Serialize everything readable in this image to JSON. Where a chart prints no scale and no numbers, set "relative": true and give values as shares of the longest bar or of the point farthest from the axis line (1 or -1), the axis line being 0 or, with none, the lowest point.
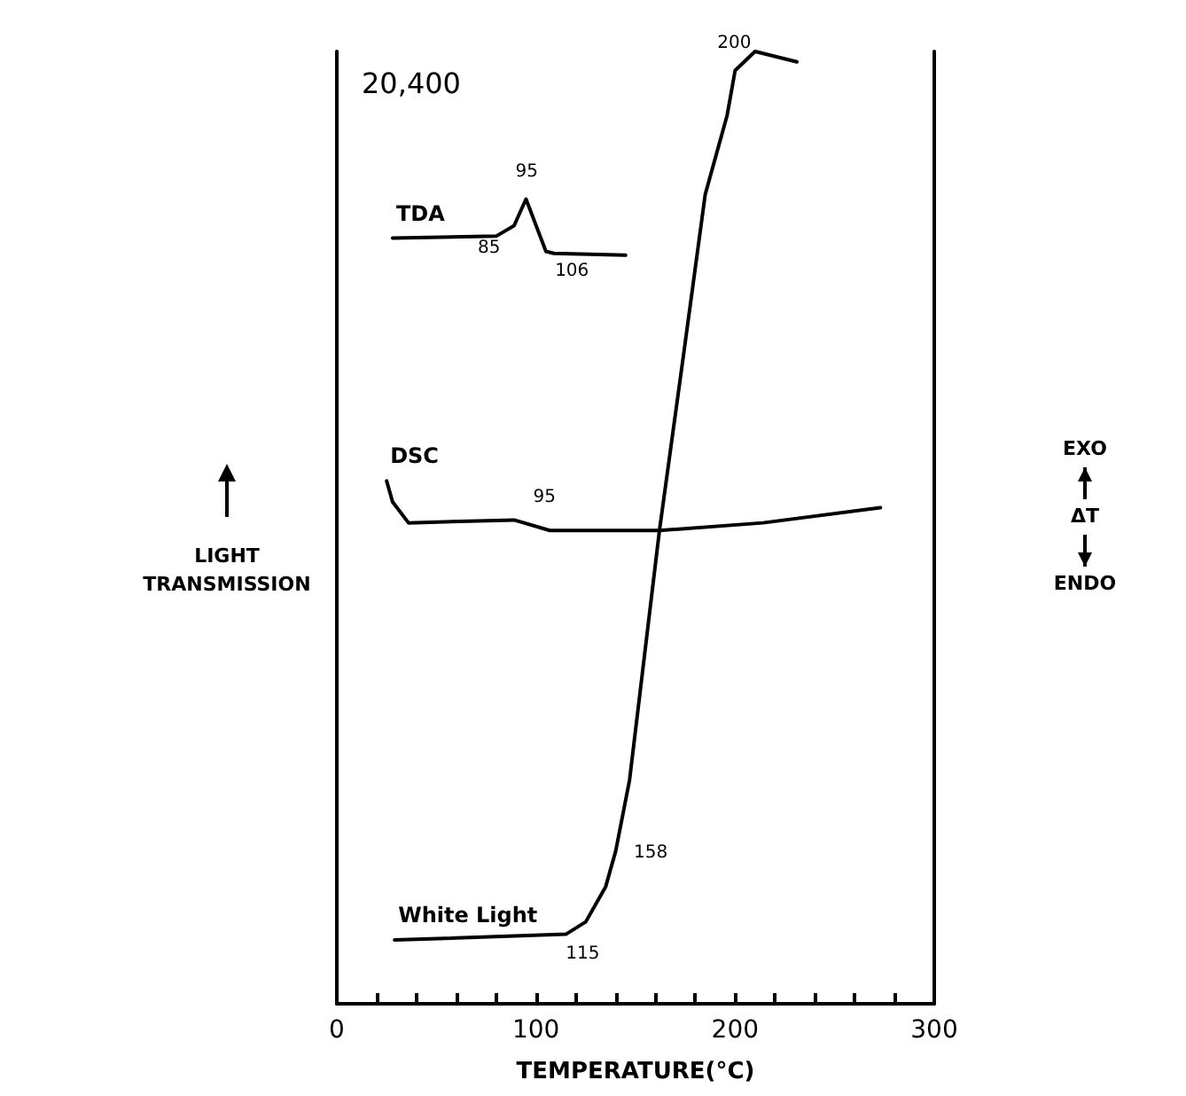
{
  "chart_data": {
    "type": "line",
    "relative": true,
    "xlabel": "TEMPERATURE(°C)",
    "ylabel": "LIGHT TRANSMISSION",
    "y2label": "EXO ΔT ENDO",
    "xlim": [
      0,
      300
    ],
    "xticks": [
      0,
      {
        "value": 20,
        "label": null
      },
      {
        "value": 40,
        "label": null
      },
      {
        "value": 60,
        "label": null
      },
      {
        "value": 80,
        "label": null
      },
      100,
      {
        "value": 120,
        "label": null
      },
      {
        "value": 140,
        "label": null
      },
      {
        "value": 160,
        "label": null
      },
      {
        "value": 180,
        "label": null
      },
      200,
      {
        "value": 220,
        "label": null
      },
      {
        "value": 240,
        "label": null
      },
      {
        "value": 260,
        "label": null
      },
      {
        "value": 280,
        "label": null
      },
      300
    ],
    "grid": false,
    "legend": false,
    "marker": "none",
    "line_style": "solid",
    "series": [
      {
        "name": "TDA",
        "color": "#000000",
        "x": [
          28,
          80,
          89,
          95,
          105,
          109,
          145
        ],
        "values": [
          0.804,
          0.806,
          0.817,
          0.845,
          0.79,
          0.788,
          0.786
        ]
      },
      {
        "name": "DSC",
        "color": "#000000",
        "x": [
          25,
          28,
          36,
          89,
          107,
          162,
          214,
          273
        ],
        "values": [
          0.549,
          0.527,
          0.505,
          0.508,
          0.497,
          0.497,
          0.505,
          0.521
        ]
      },
      {
        "name": "White Light",
        "color": "#000000",
        "x": [
          29,
          115,
          125,
          135,
          140,
          147,
          162,
          174,
          185,
          196,
          200,
          210,
          231
        ],
        "values": [
          0.067,
          0.073,
          0.086,
          0.123,
          0.16,
          0.235,
          0.497,
          0.68,
          0.85,
          0.933,
          0.98,
          1.0,
          0.989
        ]
      }
    ],
    "annotations": [
      "20,400",
      {
        "text": "95",
        "x": 95,
        "y": 0.845
      },
      {
        "text": "85",
        "x": 85,
        "y": 0.81
      },
      {
        "text": "106",
        "x": 106,
        "y": 0.79
      },
      {
        "text": "95",
        "x": 95,
        "y": 0.507
      },
      {
        "text": "115",
        "x": 115,
        "y": 0.073
      },
      {
        "text": "158",
        "x": 142,
        "y": 0.16
      },
      {
        "text": "200",
        "x": 200,
        "y": 0.98
      }
    ]
  }
}
